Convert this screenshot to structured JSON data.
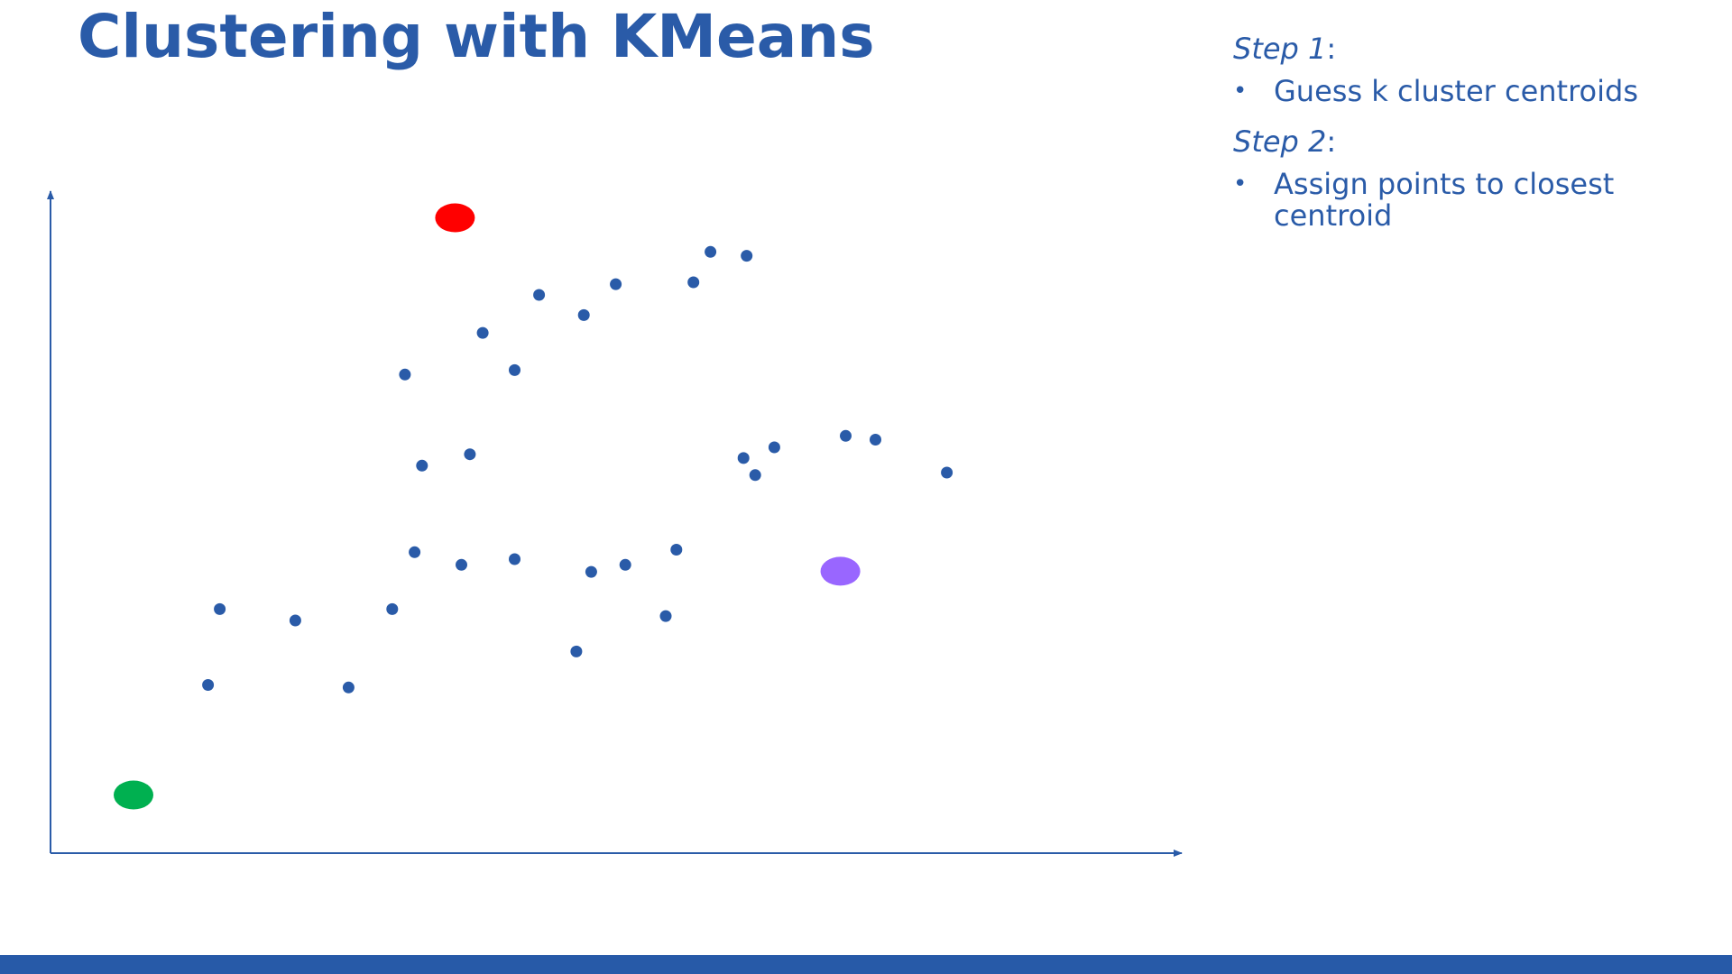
{
  "slide": {
    "title": "Clustering with KMeans",
    "steps": [
      {
        "label": "Step",
        "number": "1",
        "colon": ":",
        "items": [
          "Guess k cluster centroids"
        ]
      },
      {
        "label": "Step",
        "number": "2",
        "colon": ":",
        "items": [
          "Assign points to closest centroid"
        ]
      }
    ]
  },
  "colors": {
    "accent": "#2a5ba8",
    "footer": "#275aa8",
    "background": "#ffffff"
  },
  "chart_data": {
    "type": "scatter",
    "title": "",
    "xlabel": "",
    "ylabel": "",
    "xlim": [
      0,
      100
    ],
    "ylim": [
      0,
      100
    ],
    "grid": false,
    "series": [
      {
        "role": "data-points",
        "color": "#2a5ba8",
        "points": [
          [
            43.6,
            76.4
          ],
          [
            50.1,
            85.1
          ],
          [
            45.9,
            88.3
          ],
          [
            53.1,
            90.0
          ],
          [
            62.0,
            95.1
          ],
          [
            65.4,
            94.5
          ],
          [
            60.4,
            90.3
          ],
          [
            65.1,
            62.5
          ],
          [
            68.0,
            64.2
          ],
          [
            74.7,
            66.0
          ],
          [
            77.5,
            65.4
          ],
          [
            84.2,
            60.2
          ],
          [
            66.2,
            59.8
          ],
          [
            58.8,
            48.0
          ],
          [
            54.0,
            45.6
          ],
          [
            57.8,
            37.5
          ],
          [
            50.8,
            44.5
          ],
          [
            43.6,
            46.5
          ],
          [
            34.9,
            61.3
          ],
          [
            39.4,
            63.1
          ],
          [
            34.2,
            47.6
          ],
          [
            38.6,
            45.6
          ],
          [
            28.0,
            26.2
          ],
          [
            49.4,
            31.9
          ],
          [
            15.9,
            38.6
          ],
          [
            23.0,
            36.8
          ],
          [
            32.1,
            38.6
          ],
          [
            14.8,
            26.6
          ],
          [
            33.3,
            75.7
          ],
          [
            40.6,
            82.3
          ]
        ]
      },
      {
        "role": "centroids",
        "points": [
          {
            "x": 38.0,
            "y": 100.5,
            "color": "#ff0000"
          },
          {
            "x": 74.2,
            "y": 44.6,
            "color": "#9966ff"
          },
          {
            "x": 7.8,
            "y": 9.2,
            "color": "#00b050"
          }
        ]
      }
    ]
  }
}
